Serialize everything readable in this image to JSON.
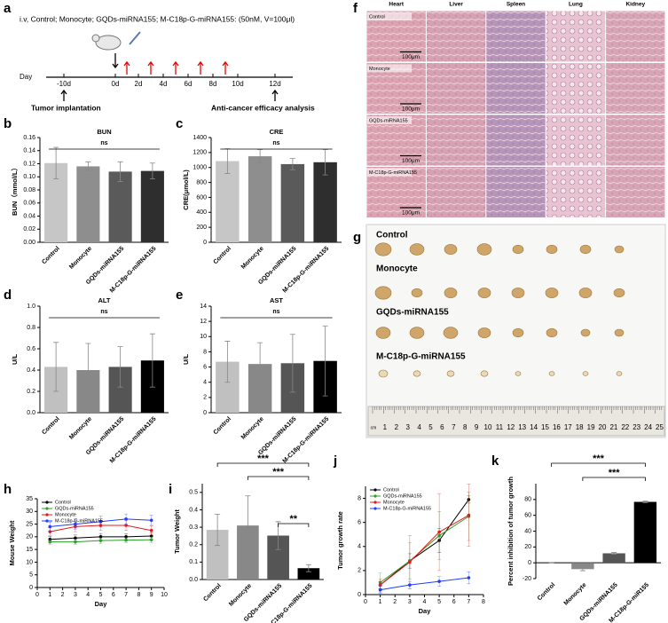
{
  "timeline": {
    "letter": "a",
    "header": "i.v, Control;  Monocyte;  GQDs-miRNA155;  M-C18p-G-miRNA155:    (50nM,  V=100μl)",
    "day_label": "Day",
    "days": [
      "-10d",
      "0d",
      "2d",
      "4d",
      "6d",
      "8d",
      "10d",
      "12d"
    ],
    "start_label": "Tumor implantation",
    "end_label": "Anti-cancer efficacy analysis"
  },
  "histology": {
    "letter": "f",
    "columns": [
      "Heart",
      "Liver",
      "Spleen",
      "Lung",
      "Kidney"
    ],
    "rows": [
      "Control",
      "Monocyte",
      "GQDs-miRNA155",
      "M-C18p-G-miRNA155"
    ],
    "scale_bar": "100μm"
  },
  "photo": {
    "letter": "g",
    "rows": [
      "Control",
      "Monocyte",
      "GQDs-miRNA155",
      "M-C18p-G-miRNA155"
    ],
    "ruler": [
      "cm",
      "1",
      "2",
      "3",
      "4",
      "5",
      "6",
      "7",
      "8",
      "9",
      "10",
      "11",
      "12",
      "13",
      "14",
      "15",
      "16",
      "17",
      "18",
      "19",
      "20",
      "21",
      "22",
      "23",
      "24",
      "25"
    ]
  },
  "chart_data": [
    {
      "letter": "b",
      "type": "bar",
      "title": "BUN",
      "ylabel": "BUN（mmol/L）",
      "categories": [
        "Control",
        "Monocyte",
        "GQDs-miRNA155",
        "M-C18p-G-miRNA155"
      ],
      "values": [
        0.121,
        0.116,
        0.108,
        0.109
      ],
      "errors": [
        0.024,
        0.007,
        0.015,
        0.012
      ],
      "colors": [
        "#c6c6c6",
        "#8e8e8e",
        "#5a5a5a",
        "#2e2e2e"
      ],
      "ylim": [
        0,
        0.16
      ],
      "yticks": [
        {
          "value": 0,
          "label": "0.00"
        },
        {
          "value": 0.02,
          "label": "0.02"
        },
        {
          "value": 0.04,
          "label": "0.04"
        },
        {
          "value": 0.06,
          "label": "0.06"
        },
        {
          "value": 0.08,
          "label": "0.08"
        },
        {
          "value": 0.1,
          "label": "0.10"
        },
        {
          "value": 0.12,
          "label": "0.12"
        },
        {
          "value": 0.14,
          "label": "0.14"
        },
        {
          "value": 0.16,
          "label": "0.16"
        }
      ],
      "annotations": [
        "ns"
      ]
    },
    {
      "letter": "c",
      "type": "bar",
      "title": "CRE",
      "ylabel": "CRE(μmol/L)",
      "categories": [
        "Control",
        "Monocyte",
        "GQDs-miRNA155",
        "M-C18p-G-miRNA155"
      ],
      "values": [
        1085,
        1150,
        1045,
        1070
      ],
      "errors": [
        165,
        90,
        75,
        170
      ],
      "colors": [
        "#c6c6c6",
        "#8e8e8e",
        "#5a5a5a",
        "#2e2e2e"
      ],
      "ylim": [
        0,
        1400
      ],
      "yticks": [
        0,
        200,
        400,
        600,
        800,
        1000,
        1200,
        1400
      ],
      "annotations": [
        "ns"
      ]
    },
    {
      "letter": "d",
      "type": "bar",
      "title": "ALT",
      "ylabel": "U/L",
      "categories": [
        "Control",
        "Monocyte",
        "GQDs-miRNA155",
        "M-C18p-G-miRNA155"
      ],
      "values": [
        0.43,
        0.4,
        0.43,
        0.49
      ],
      "errors": [
        0.23,
        0.25,
        0.19,
        0.25
      ],
      "colors": [
        "#c0c0c0",
        "#888888",
        "#555555",
        "#000000"
      ],
      "ylim": [
        0,
        1
      ],
      "yticks": [
        {
          "value": 0,
          "label": "0.0"
        },
        0.2,
        0.4,
        0.6,
        0.8,
        {
          "value": 1,
          "label": "1.0"
        }
      ],
      "annotations": [
        "ns"
      ]
    },
    {
      "letter": "e",
      "type": "bar",
      "title": "AST",
      "ylabel": "U/L",
      "categories": [
        "Control",
        "Monocyte",
        "GQDs-miRNA155",
        "M-C18p-G-miRNA155"
      ],
      "values": [
        6.7,
        6.4,
        6.5,
        6.8
      ],
      "errors": [
        2.7,
        2.8,
        3.8,
        4.6
      ],
      "colors": [
        "#c0c0c0",
        "#888888",
        "#555555",
        "#000000"
      ],
      "ylim": [
        0,
        14
      ],
      "yticks": [
        0,
        2,
        4,
        6,
        8,
        10,
        12,
        14
      ],
      "annotations": [
        "ns"
      ]
    },
    {
      "letter": "h",
      "type": "line",
      "xlabel": "Day",
      "ylabel": "Mouse Weight",
      "x": [
        1,
        3,
        5,
        7,
        9
      ],
      "series": [
        {
          "name": "Control",
          "color": "#000000",
          "values": [
            19,
            19.5,
            20,
            20,
            20.3
          ],
          "errors": [
            1.2,
            1.2,
            1.3,
            1.2,
            1.3
          ]
        },
        {
          "name": "GQDs-miRNA155",
          "color": "#2ca02c",
          "values": [
            18,
            18,
            18.5,
            18.7,
            18.8
          ],
          "errors": [
            1,
            1,
            1.1,
            1,
            1.1
          ]
        },
        {
          "name": "Monocyte",
          "color": "#e41a1c",
          "values": [
            22,
            24,
            24.5,
            24.5,
            22.5
          ],
          "errors": [
            1.5,
            2,
            2,
            2,
            1.8
          ]
        },
        {
          "name": "M-C18p-G-miRNA155",
          "color": "#1f3cff",
          "values": [
            24,
            25,
            26,
            27,
            26.5
          ],
          "errors": [
            1.8,
            2,
            2.2,
            2,
            2
          ]
        }
      ],
      "xlim": [
        0,
        10
      ],
      "xticks": [
        0,
        1,
        2,
        3,
        4,
        5,
        6,
        7,
        8,
        9,
        10
      ],
      "ylim": [
        0,
        35
      ],
      "yticks": [
        0,
        5,
        10,
        15,
        20,
        25,
        30,
        35
      ]
    },
    {
      "letter": "i",
      "type": "bar",
      "ylabel": "Tumor Weight",
      "categories": [
        "Control",
        "Monocyte",
        "GQDs-miRNA155",
        "M-C18p-G-miRNA155"
      ],
      "values": [
        0.285,
        0.31,
        0.252,
        0.065
      ],
      "errors": [
        0.09,
        0.17,
        0.08,
        0.02
      ],
      "colors": [
        "#c0c0c0",
        "#888888",
        "#555555",
        "#000000"
      ],
      "ylim": [
        0,
        0.55
      ],
      "yticks": [
        {
          "value": 0,
          "label": "0.0"
        },
        0.1,
        0.2,
        0.3,
        0.4,
        0.5
      ],
      "annotations": [
        "***",
        "***",
        "**"
      ]
    },
    {
      "letter": "j",
      "type": "line",
      "xlabel": "Day",
      "ylabel": "Tumor growth rate",
      "x": [
        1,
        3,
        5,
        7
      ],
      "series": [
        {
          "name": "Control",
          "color": "#000000",
          "values": [
            0.8,
            2.8,
            4.5,
            7.9
          ],
          "errors": [
            0.3,
            0.6,
            1,
            0.3
          ]
        },
        {
          "name": "GQDs-miRNA155",
          "color": "#2ca02c",
          "values": [
            1,
            2.8,
            4.9,
            6.5
          ],
          "errors": [
            0.8,
            1.5,
            2,
            2
          ]
        },
        {
          "name": "Monocyte",
          "color": "#e41a1c",
          "values": [
            0.8,
            2.7,
            5.2,
            6.6
          ],
          "errors": [
            0.5,
            2.2,
            3.2,
            2.6
          ]
        },
        {
          "name": "M-C18p-G-miRNA155",
          "color": "#1f3cff",
          "values": [
            0.4,
            0.8,
            1.1,
            1.4
          ],
          "errors": [
            0.3,
            0.3,
            0.4,
            0.5
          ]
        }
      ],
      "xlim": [
        0,
        8
      ],
      "xticks": [
        0,
        1,
        2,
        3,
        4,
        5,
        6,
        7,
        8
      ],
      "ylim": [
        0,
        9
      ],
      "yticks": [
        0,
        2,
        4,
        6,
        8
      ]
    },
    {
      "letter": "k",
      "type": "bar",
      "ylabel": "Percent inhibition of tumor growth",
      "categories": [
        "Control",
        "Monocyte",
        "GQDs-miRNA155",
        "M-C18p-G-miR155"
      ],
      "values": [
        0,
        -8,
        12,
        77
      ],
      "errors": [
        0,
        2,
        1,
        1
      ],
      "colors": [
        "#c0c0c0",
        "#888888",
        "#555555",
        "#000000"
      ],
      "ylim": [
        -20,
        100
      ],
      "yticks": [
        -20,
        0,
        20,
        40,
        60,
        80
      ],
      "annotations": [
        "***",
        "***"
      ]
    }
  ]
}
